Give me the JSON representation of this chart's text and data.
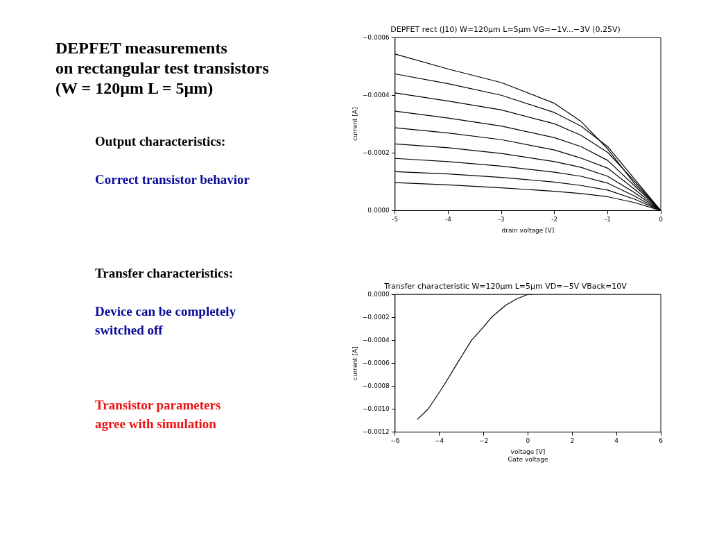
{
  "chart_data": [
    {
      "type": "other",
      "title": "DEPFET measurements\non rectangular test transistors\n(W = 120µm L = 5µm)",
      "annotations": [
        "Output characteristics:",
        "Correct transistor behavior",
        "Transfer characteristics:",
        "Device can be completely\nswitched off",
        "Transistor parameters\nagree with simulation"
      ]
    },
    {
      "type": "line",
      "title": "DEPFET rect (J10) W=120µm L=5µm VG=−1V...−3V (0.25V)",
      "xlabel": "drain voltage [V]",
      "ylabel": "current [A]",
      "x": [
        -5,
        -4,
        -3,
        -2,
        -1.5,
        -1,
        -0.5,
        0
      ],
      "series": [
        {
          "color": "#000000",
          "values": [
            -0.000543,
            -0.000491,
            -0.000444,
            -0.000372,
            -0.000309,
            -0.000214,
            -9.5e-05,
            0
          ]
        },
        {
          "color": "#000000",
          "values": [
            -0.000474,
            -0.00044,
            -0.0004,
            -0.00034,
            -0.000293,
            -0.000222,
            -0.000111,
            0
          ]
        },
        {
          "color": "#000000",
          "values": [
            -0.000408,
            -0.00038,
            -0.000349,
            -0.000301,
            -0.000261,
            -0.000202,
            -0.000103,
            0
          ]
        },
        {
          "color": "#000000",
          "values": [
            -0.000345,
            -0.000321,
            -0.000293,
            -0.000253,
            -0.000222,
            -0.000174,
            -8.7e-05,
            0
          ]
        },
        {
          "color": "#000000",
          "values": [
            -0.000287,
            -0.000269,
            -0.000246,
            -0.00021,
            -0.000182,
            -0.000147,
            -7.5e-05,
            0
          ]
        },
        {
          "color": "#000000",
          "values": [
            -0.000231,
            -0.000218,
            -0.000198,
            -0.00017,
            -0.00015,
            -0.000119,
            -6.3e-05,
            0
          ]
        },
        {
          "color": "#000000",
          "values": [
            -0.000181,
            -0.00017,
            -0.000154,
            -0.000133,
            -0.000119,
            -9.5e-05,
            -5.1e-05,
            0
          ]
        },
        {
          "color": "#000000",
          "values": [
            -0.000135,
            -0.000127,
            -0.000115,
            -9.9e-05,
            -8.7e-05,
            -7.1e-05,
            -4e-05,
            0
          ]
        },
        {
          "color": "#000000",
          "values": [
            -9.7e-05,
            -8.9e-05,
            -7.9e-05,
            -6.7e-05,
            -5.9e-05,
            -4.8e-05,
            -2.8e-05,
            0
          ]
        }
      ],
      "xlim": [
        -5,
        0
      ],
      "xticks": [
        -5,
        -4,
        -3,
        -2,
        -1,
        0
      ],
      "ylim": [
        0,
        -0.0006
      ],
      "yticks": [
        {
          "value": 0,
          "label": "0.0000"
        },
        {
          "value": -0.0002,
          "label": "−0.0002"
        },
        {
          "value": -0.0004,
          "label": "−0.0004"
        },
        {
          "value": -0.0006,
          "label": "−0.0006"
        }
      ],
      "grid": false,
      "legend": false,
      "marker": "none",
      "line_style": "solid"
    },
    {
      "type": "line",
      "title": "Transfer characteristic W=120µm L=5µm VD=−5V VBack=10V",
      "xlabel": "voltage [V]",
      "ylabel": "current [A]",
      "annotations": [
        "Gate voltage"
      ],
      "series": [
        {
          "color": "#000000",
          "x": [
            -5,
            -4.51,
            -3.82,
            -3.19,
            -2.55,
            -2,
            -1.65,
            -1,
            -0.5,
            0,
            0.2
          ],
          "values": [
            -0.00109,
            -0.001,
            -0.0008,
            -0.0006,
            -0.0004,
            -0.000282,
            -0.0002,
            -9.4e-05,
            -3.8e-05,
            0,
            0
          ]
        }
      ],
      "xlim": [
        -6,
        6
      ],
      "xticks": [
        {
          "value": -6,
          "label": "−6"
        },
        {
          "value": -4,
          "label": "−4"
        },
        {
          "value": -2,
          "label": "−2"
        },
        0,
        2,
        4,
        6
      ],
      "ylim": [
        -0.0012,
        0
      ],
      "yticks": [
        {
          "value": -0.0012,
          "label": "−0.0012"
        },
        {
          "value": -0.001,
          "label": "−0.0010"
        },
        {
          "value": -0.0008,
          "label": "−0.0008"
        },
        {
          "value": -0.0006,
          "label": "−0.0006"
        },
        {
          "value": -0.0004,
          "label": "−0.0004"
        },
        {
          "value": -0.0002,
          "label": "−0.0002"
        },
        {
          "value": 0,
          "label": "0.0000"
        }
      ],
      "grid": false,
      "legend": false,
      "marker": "none",
      "line_style": "solid"
    }
  ]
}
